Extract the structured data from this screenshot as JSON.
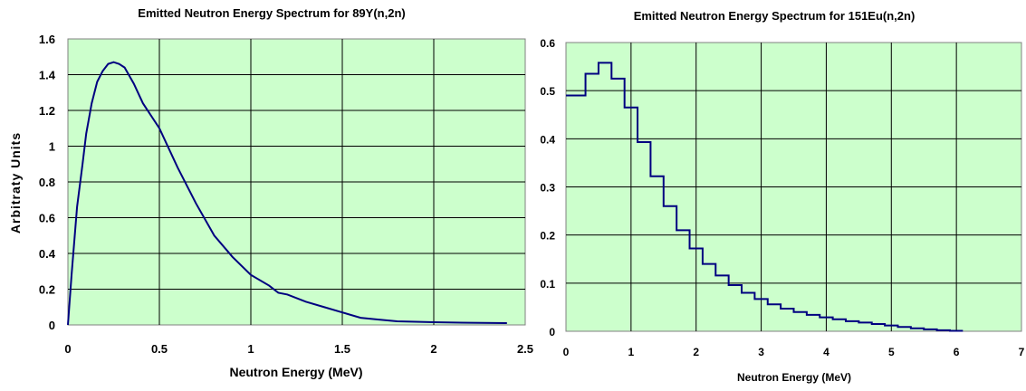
{
  "chart_data": [
    {
      "type": "line",
      "title": "Emitted Neutron Energy Spectrum for 89Y(n,2n)",
      "xlabel": "Neutron Energy (MeV)",
      "ylabel": "Arbitraty Units",
      "xlim": [
        0,
        2.5
      ],
      "ylim": [
        0,
        1.6
      ],
      "xticks": [
        "0",
        "0.5",
        "1",
        "1.5",
        "2",
        "2.5"
      ],
      "yticks": [
        "0",
        "0.2",
        "0.4",
        "0.6",
        "0.8",
        "1",
        "1.2",
        "1.4",
        "1.6"
      ],
      "grid": true,
      "colors": {
        "series": "#000080",
        "plot_bg": "#ccffcc"
      },
      "series": [
        {
          "x": [
            0.0,
            0.02,
            0.05,
            0.08,
            0.1,
            0.13,
            0.16,
            0.19,
            0.22,
            0.25,
            0.28,
            0.31,
            0.36,
            0.41,
            0.5,
            0.6,
            0.7,
            0.8,
            0.9,
            1.0,
            1.1,
            1.15,
            1.2,
            1.3,
            1.4,
            1.5,
            1.6,
            1.7,
            1.8,
            2.0,
            2.2,
            2.4
          ],
          "y": [
            0.0,
            0.28,
            0.66,
            0.9,
            1.07,
            1.24,
            1.36,
            1.42,
            1.46,
            1.47,
            1.46,
            1.44,
            1.35,
            1.24,
            1.1,
            0.88,
            0.68,
            0.5,
            0.38,
            0.28,
            0.22,
            0.18,
            0.17,
            0.13,
            0.1,
            0.07,
            0.04,
            0.03,
            0.02,
            0.015,
            0.012,
            0.01
          ]
        }
      ]
    },
    {
      "type": "line",
      "title": "Emitted Neutron Energy Spectrum for 151Eu(n,2n)",
      "xlabel": "Neutron Energy (MeV)",
      "ylabel": "",
      "xlim": [
        0,
        7
      ],
      "ylim": [
        0,
        0.6
      ],
      "xticks": [
        "0",
        "1",
        "2",
        "3",
        "4",
        "5",
        "6",
        "7"
      ],
      "yticks": [
        "0",
        "0.1",
        "0.2",
        "0.3",
        "0.4",
        "0.5",
        "0.6"
      ],
      "grid": true,
      "step": true,
      "colors": {
        "series": "#000080",
        "plot_bg": "#ccffcc"
      },
      "series": [
        {
          "bin_edges": [
            0.0,
            0.3,
            0.5,
            0.7,
            0.9,
            1.1,
            1.3,
            1.5,
            1.7,
            1.9,
            2.1,
            2.3,
            2.5,
            2.7,
            2.9,
            3.1,
            3.3,
            3.5,
            3.7,
            3.9,
            4.1,
            4.3,
            4.5,
            4.7,
            4.9,
            5.1,
            5.3,
            5.5,
            5.7,
            5.9,
            6.1
          ],
          "values": [
            0.49,
            0.535,
            0.558,
            0.525,
            0.465,
            0.393,
            0.322,
            0.26,
            0.21,
            0.172,
            0.14,
            0.116,
            0.096,
            0.08,
            0.067,
            0.056,
            0.047,
            0.04,
            0.034,
            0.029,
            0.025,
            0.021,
            0.018,
            0.015,
            0.012,
            0.009,
            0.006,
            0.004,
            0.002,
            0.001
          ]
        }
      ]
    }
  ]
}
